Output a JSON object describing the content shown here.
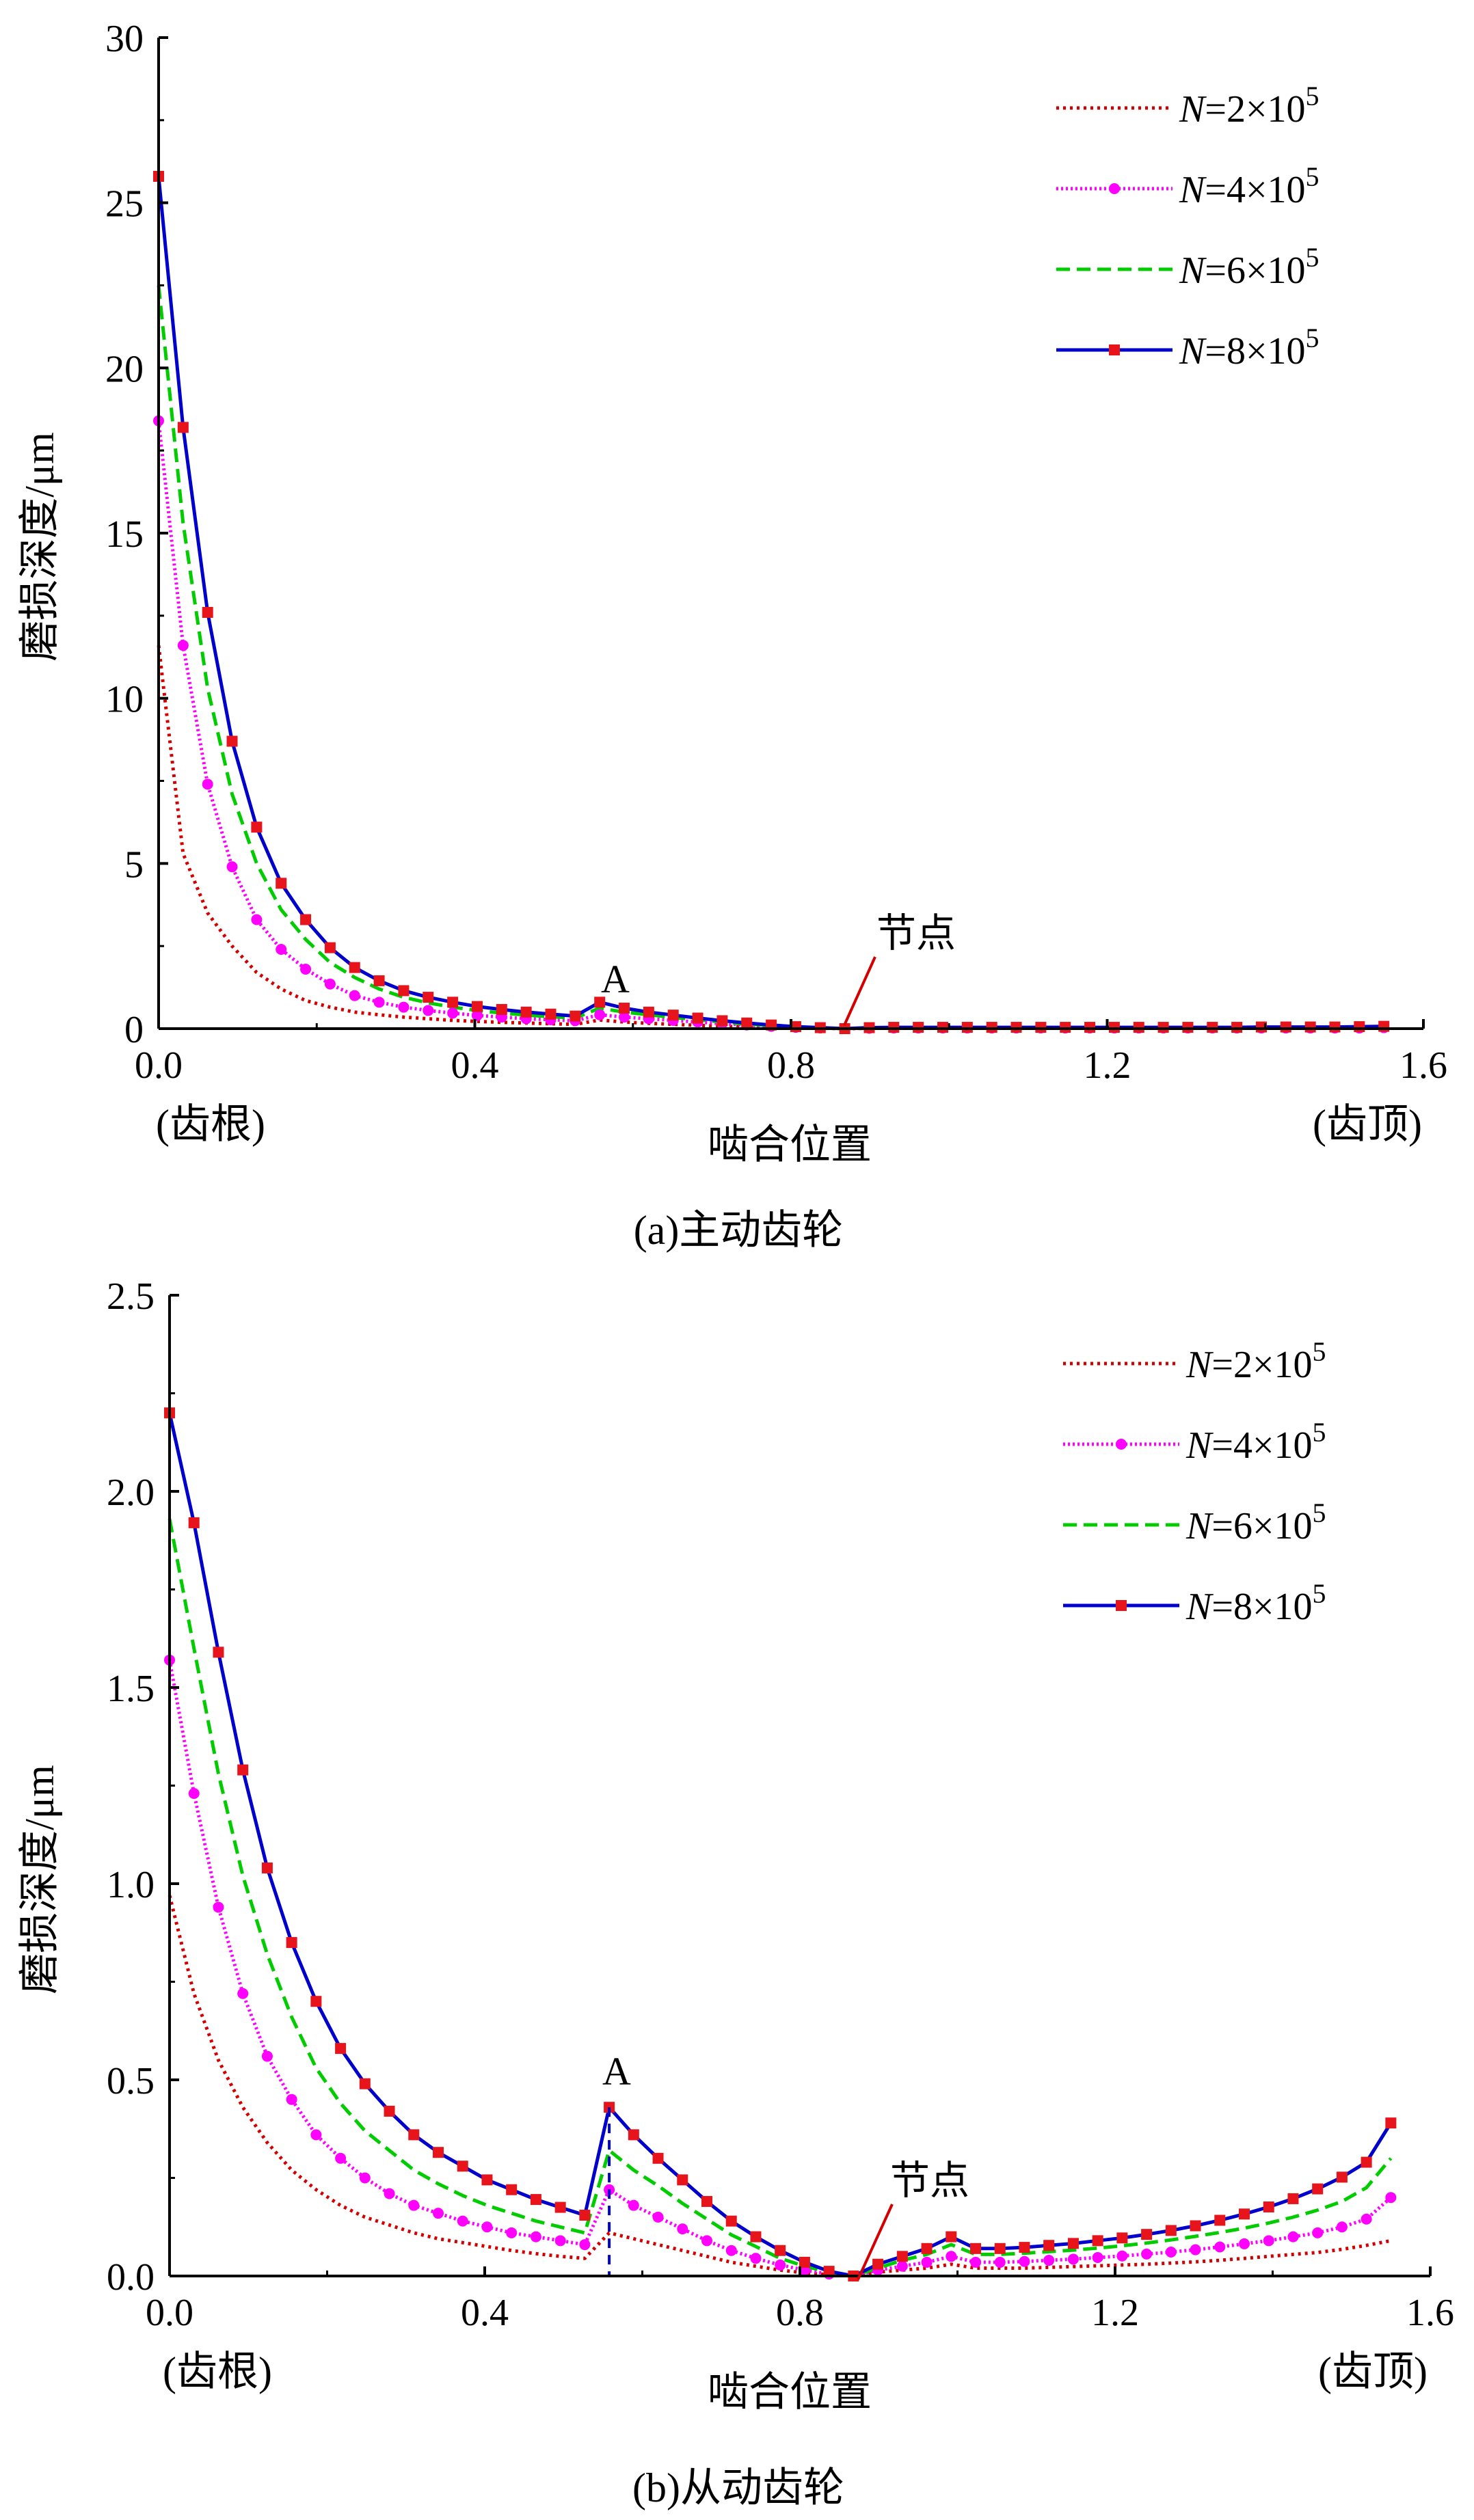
{
  "chart_data": [
    {
      "type": "line",
      "caption": "(a)主动齿轮",
      "ylabel": "磨损深度/μm",
      "xlabel": "啮合位置",
      "x_left_note": "(齿根)",
      "x_right_note": "(齿顶)",
      "xlim": [
        0,
        1.6
      ],
      "ylim": [
        0,
        30
      ],
      "xticks": [
        "0.0",
        "0.4",
        "0.8",
        "1.2",
        "1.6"
      ],
      "yticks": [
        "0",
        "5",
        "10",
        "15",
        "20",
        "25",
        "30"
      ],
      "annotations": {
        "A": "A",
        "pitch_point": "节点"
      },
      "legend": {
        "position": "top-right",
        "prefix": "N",
        "mid": "=",
        "mult": "×10",
        "exp": "5"
      },
      "x": [
        0.0,
        0.031,
        0.062,
        0.093,
        0.124,
        0.155,
        0.186,
        0.217,
        0.248,
        0.279,
        0.31,
        0.341,
        0.372,
        0.403,
        0.434,
        0.465,
        0.496,
        0.527,
        0.558,
        0.589,
        0.62,
        0.651,
        0.682,
        0.713,
        0.744,
        0.775,
        0.806,
        0.837,
        0.868,
        0.899,
        0.93,
        0.961,
        0.992,
        1.023,
        1.054,
        1.085,
        1.116,
        1.147,
        1.178,
        1.209,
        1.24,
        1.271,
        1.302,
        1.333,
        1.364,
        1.395,
        1.426,
        1.457,
        1.488,
        1.519,
        1.55
      ],
      "series": [
        {
          "name_coef": "2",
          "color": "#d40000",
          "dash": "dotted",
          "marker": "none",
          "values": [
            11.6,
            5.3,
            3.5,
            2.5,
            1.7,
            1.2,
            0.85,
            0.65,
            0.5,
            0.42,
            0.35,
            0.3,
            0.25,
            0.22,
            0.19,
            0.17,
            0.15,
            0.13,
            0.26,
            0.2,
            0.16,
            0.13,
            0.1,
            0.07,
            0.05,
            0.03,
            0.02,
            0.01,
            0.0,
            0.01,
            0.01,
            0.01,
            0.01,
            0.01,
            0.01,
            0.01,
            0.01,
            0.01,
            0.01,
            0.01,
            0.01,
            0.01,
            0.01,
            0.01,
            0.01,
            0.01,
            0.01,
            0.01,
            0.01,
            0.01,
            0.01
          ]
        },
        {
          "name_coef": "4",
          "color": "#ff00ff",
          "dash": "dotted-dense",
          "marker": "circle",
          "values": [
            18.4,
            11.6,
            7.4,
            4.9,
            3.3,
            2.4,
            1.8,
            1.35,
            1.0,
            0.8,
            0.65,
            0.55,
            0.47,
            0.4,
            0.35,
            0.3,
            0.27,
            0.24,
            0.42,
            0.35,
            0.3,
            0.25,
            0.2,
            0.15,
            0.11,
            0.07,
            0.04,
            0.02,
            0.0,
            0.01,
            0.02,
            0.02,
            0.02,
            0.02,
            0.02,
            0.02,
            0.02,
            0.02,
            0.02,
            0.02,
            0.02,
            0.02,
            0.02,
            0.02,
            0.02,
            0.02,
            0.02,
            0.02,
            0.02,
            0.02,
            0.03
          ]
        },
        {
          "name_coef": "6",
          "color": "#00cc00",
          "dash": "dashed",
          "marker": "none",
          "values": [
            22.5,
            15.3,
            10.3,
            7.1,
            5.0,
            3.6,
            2.7,
            2.0,
            1.55,
            1.2,
            0.95,
            0.78,
            0.65,
            0.55,
            0.47,
            0.41,
            0.36,
            0.32,
            0.62,
            0.5,
            0.42,
            0.34,
            0.27,
            0.2,
            0.14,
            0.09,
            0.05,
            0.02,
            0.0,
            0.02,
            0.03,
            0.03,
            0.03,
            0.03,
            0.03,
            0.03,
            0.03,
            0.03,
            0.03,
            0.03,
            0.03,
            0.03,
            0.03,
            0.03,
            0.03,
            0.04,
            0.04,
            0.04,
            0.04,
            0.05,
            0.05
          ]
        },
        {
          "name_coef": "8",
          "color": "#0000cc",
          "dash": "solid",
          "marker": "square",
          "values": [
            25.8,
            18.2,
            12.6,
            8.7,
            6.1,
            4.4,
            3.3,
            2.45,
            1.85,
            1.45,
            1.15,
            0.95,
            0.8,
            0.67,
            0.58,
            0.5,
            0.44,
            0.38,
            0.8,
            0.62,
            0.5,
            0.41,
            0.32,
            0.24,
            0.17,
            0.11,
            0.06,
            0.03,
            0.0,
            0.03,
            0.04,
            0.04,
            0.04,
            0.04,
            0.04,
            0.04,
            0.04,
            0.04,
            0.04,
            0.04,
            0.04,
            0.04,
            0.04,
            0.04,
            0.04,
            0.05,
            0.05,
            0.05,
            0.05,
            0.06,
            0.07
          ]
        }
      ]
    },
    {
      "type": "line",
      "caption": "(b)从动齿轮",
      "ylabel": "磨损深度/μm",
      "xlabel": "啮合位置",
      "x_left_note": "(齿根)",
      "x_right_note": "(齿顶)",
      "xlim": [
        0,
        1.6
      ],
      "ylim": [
        0,
        2.5
      ],
      "xticks": [
        "0.0",
        "0.4",
        "0.8",
        "1.2",
        "1.6"
      ],
      "yticks": [
        "0.0",
        "0.5",
        "1.0",
        "1.5",
        "2.0",
        "2.5"
      ],
      "annotations": {
        "A": "A",
        "pitch_point": "节点"
      },
      "legend": {
        "position": "top-right",
        "prefix": "N",
        "mid": "=",
        "mult": "×10",
        "exp": "5"
      },
      "x": [
        0.0,
        0.031,
        0.062,
        0.093,
        0.124,
        0.155,
        0.186,
        0.217,
        0.248,
        0.279,
        0.31,
        0.341,
        0.372,
        0.403,
        0.434,
        0.465,
        0.496,
        0.527,
        0.558,
        0.589,
        0.62,
        0.651,
        0.682,
        0.713,
        0.744,
        0.775,
        0.806,
        0.837,
        0.868,
        0.899,
        0.93,
        0.961,
        0.992,
        1.023,
        1.054,
        1.085,
        1.116,
        1.147,
        1.178,
        1.209,
        1.24,
        1.271,
        1.302,
        1.333,
        1.364,
        1.395,
        1.426,
        1.457,
        1.488,
        1.519,
        1.55
      ],
      "series": [
        {
          "name_coef": "2",
          "color": "#d40000",
          "dash": "dotted",
          "marker": "none",
          "values": [
            0.97,
            0.72,
            0.55,
            0.43,
            0.34,
            0.27,
            0.22,
            0.18,
            0.15,
            0.13,
            0.11,
            0.095,
            0.085,
            0.075,
            0.065,
            0.057,
            0.05,
            0.045,
            0.11,
            0.095,
            0.08,
            0.065,
            0.05,
            0.035,
            0.025,
            0.015,
            0.008,
            0.003,
            0.0,
            0.01,
            0.015,
            0.02,
            0.03,
            0.02,
            0.02,
            0.02,
            0.022,
            0.024,
            0.026,
            0.028,
            0.03,
            0.033,
            0.036,
            0.04,
            0.045,
            0.05,
            0.055,
            0.06,
            0.068,
            0.078,
            0.09
          ]
        },
        {
          "name_coef": "4",
          "color": "#ff00ff",
          "dash": "dotted-dense",
          "marker": "circle",
          "values": [
            1.57,
            1.23,
            0.94,
            0.72,
            0.56,
            0.45,
            0.36,
            0.3,
            0.25,
            0.21,
            0.18,
            0.16,
            0.14,
            0.125,
            0.11,
            0.1,
            0.09,
            0.08,
            0.22,
            0.18,
            0.15,
            0.12,
            0.09,
            0.065,
            0.045,
            0.028,
            0.015,
            0.005,
            0.0,
            0.015,
            0.025,
            0.035,
            0.05,
            0.035,
            0.035,
            0.037,
            0.04,
            0.043,
            0.047,
            0.051,
            0.056,
            0.061,
            0.067,
            0.074,
            0.082,
            0.09,
            0.1,
            0.11,
            0.125,
            0.145,
            0.2
          ]
        },
        {
          "name_coef": "6",
          "color": "#00cc00",
          "dash": "dashed",
          "marker": "none",
          "values": [
            1.93,
            1.6,
            1.28,
            1.02,
            0.82,
            0.66,
            0.53,
            0.44,
            0.37,
            0.32,
            0.27,
            0.235,
            0.205,
            0.18,
            0.16,
            0.14,
            0.125,
            0.11,
            0.32,
            0.27,
            0.23,
            0.185,
            0.145,
            0.105,
            0.075,
            0.045,
            0.025,
            0.01,
            0.0,
            0.02,
            0.04,
            0.055,
            0.08,
            0.055,
            0.055,
            0.058,
            0.062,
            0.066,
            0.071,
            0.077,
            0.084,
            0.092,
            0.101,
            0.111,
            0.122,
            0.135,
            0.15,
            0.168,
            0.19,
            0.225,
            0.3
          ]
        },
        {
          "name_coef": "8",
          "color": "#0000cc",
          "dash": "solid",
          "marker": "square",
          "values": [
            2.2,
            1.92,
            1.59,
            1.29,
            1.04,
            0.85,
            0.7,
            0.58,
            0.49,
            0.42,
            0.36,
            0.315,
            0.28,
            0.245,
            0.22,
            0.195,
            0.175,
            0.155,
            0.43,
            0.36,
            0.3,
            0.245,
            0.19,
            0.14,
            0.1,
            0.065,
            0.035,
            0.012,
            0.0,
            0.03,
            0.05,
            0.07,
            0.1,
            0.07,
            0.07,
            0.073,
            0.078,
            0.083,
            0.09,
            0.097,
            0.106,
            0.116,
            0.128,
            0.142,
            0.158,
            0.176,
            0.197,
            0.222,
            0.252,
            0.29,
            0.39
          ]
        }
      ]
    }
  ]
}
